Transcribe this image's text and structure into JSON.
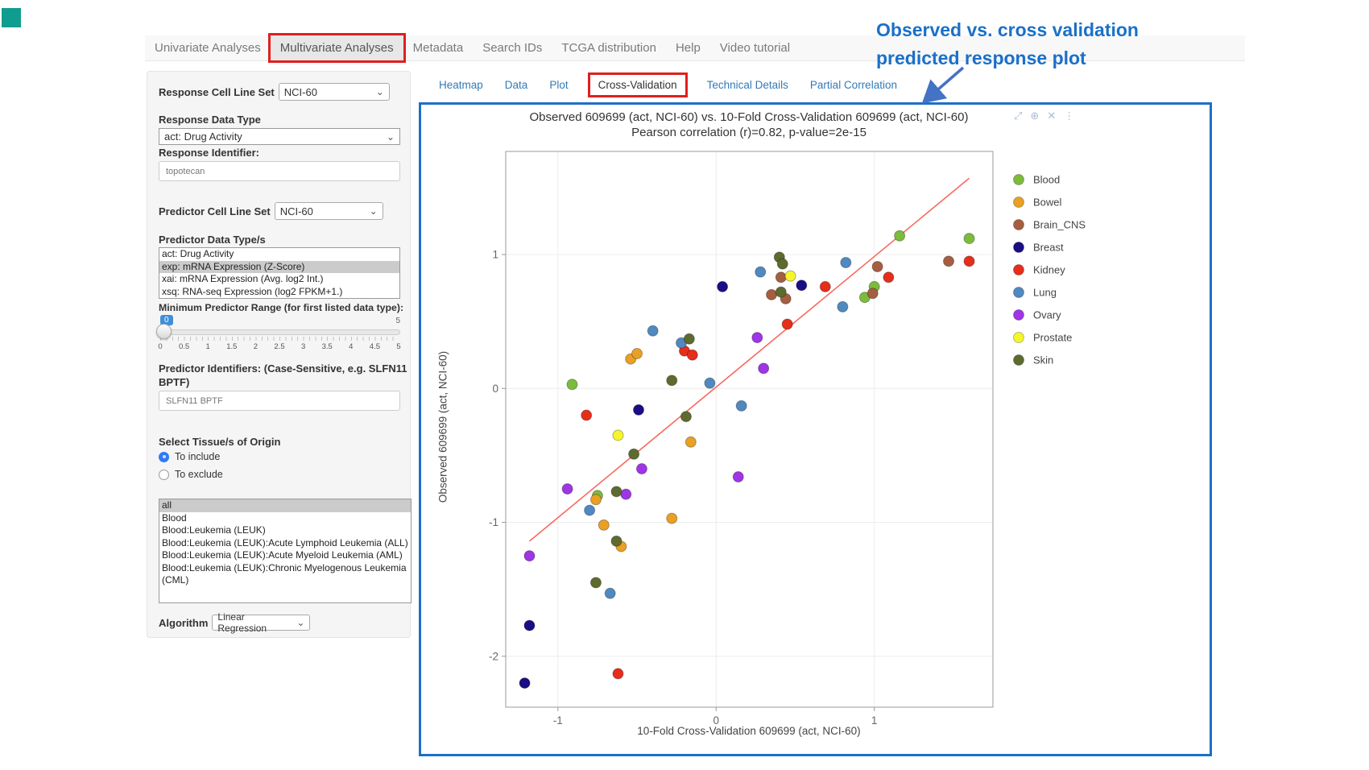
{
  "icons": {
    "chevron": "⌄"
  },
  "navbar": {
    "tabs": [
      {
        "label": "Univariate Analyses",
        "active": false
      },
      {
        "label": "Multivariate Analyses",
        "active": true
      },
      {
        "label": "Metadata",
        "active": false
      },
      {
        "label": "Search IDs",
        "active": false
      },
      {
        "label": "TCGA distribution",
        "active": false
      },
      {
        "label": "Help",
        "active": false
      },
      {
        "label": "Video tutorial",
        "active": false
      }
    ]
  },
  "subtabs": [
    {
      "label": "Heatmap",
      "active": false
    },
    {
      "label": "Data",
      "active": false
    },
    {
      "label": "Plot",
      "active": false
    },
    {
      "label": "Cross-Validation",
      "active": true
    },
    {
      "label": "Technical Details",
      "active": false
    },
    {
      "label": "Partial Correlation",
      "active": false
    }
  ],
  "sidebar": {
    "response_cell_line_set": {
      "label": "Response Cell Line Set",
      "value": "NCI-60"
    },
    "response_data_type": {
      "label": "Response Data Type",
      "value": "act: Drug Activity"
    },
    "response_identifier": {
      "label": "Response Identifier:",
      "value": "topotecan"
    },
    "predictor_cell_line_set": {
      "label": "Predictor Cell Line Set",
      "value": "NCI-60"
    },
    "predictor_data_types": {
      "label": "Predictor Data Type/s",
      "options": [
        "act: Drug Activity",
        "exp: mRNA Expression (Z-Score)",
        "xai: mRNA Expression (Avg. log2 Int.)",
        "xsq: RNA-seq Expression (log2 FPKM+1.)"
      ],
      "selected_index": 1
    },
    "min_predictor_range": {
      "label": "Minimum Predictor Range (for first listed data type):",
      "value": "0",
      "max_label": "5",
      "tick_labels": [
        "0",
        "0.5",
        "1",
        "1.5",
        "2",
        "2.5",
        "3",
        "3.5",
        "4",
        "4.5",
        "5"
      ]
    },
    "predictor_identifiers": {
      "label": "Predictor Identifiers: (Case-Sensitive, e.g. SLFN11 BPTF)",
      "value": "SLFN11 BPTF"
    },
    "tissue_origin": {
      "label": "Select Tissue/s of Origin",
      "radios": [
        {
          "label": "To include",
          "selected": true
        },
        {
          "label": "To exclude",
          "selected": false
        }
      ],
      "options": [
        "all",
        "Blood",
        "Blood:Leukemia (LEUK)",
        "Blood:Leukemia (LEUK):Acute Lymphoid Leukemia (ALL)",
        "Blood:Leukemia (LEUK):Acute Myeloid Leukemia (AML)",
        "Blood:Leukemia (LEUK):Chronic Myelogenous Leukemia (CML)"
      ],
      "selected_index": 0
    },
    "algorithm": {
      "label": "Algorithm",
      "value": "Linear Regression"
    }
  },
  "annotation": {
    "line1": "Observed vs. cross validation",
    "line2": "predicted response plot",
    "color": "#1a70c9"
  },
  "modebar": {
    "icons": [
      {
        "name": "expand-icon",
        "glyph": "⤢"
      },
      {
        "name": "zoom-icon",
        "glyph": "⊕"
      },
      {
        "name": "close-icon",
        "glyph": "✕"
      },
      {
        "name": "more-icon",
        "glyph": "⋮"
      }
    ]
  },
  "chart_data": {
    "type": "scatter",
    "title": "Observed 609699 (act, NCI-60) vs. 10-Fold Cross-Validation 609699 (act, NCI-60)",
    "subtitle": "Pearson correlation (r)=0.82, p-value=2e-15",
    "xlabel": "10-Fold Cross-Validation 609699 (act, NCI-60)",
    "ylabel": "Observed 609699 (act, NCI-60)",
    "xlim": [
      -1.33,
      1.75
    ],
    "ylim": [
      -2.38,
      1.77
    ],
    "xticks": [
      -1,
      0,
      1
    ],
    "yticks": [
      1,
      0,
      -1,
      -2
    ],
    "grid": true,
    "legend_position": "right",
    "regression_line": {
      "x1": -1.18,
      "y1": -1.14,
      "x2": 1.6,
      "y2": 1.57,
      "color": "#f8695f"
    },
    "series": [
      {
        "name": "Blood",
        "color": "#7cbb3c",
        "points": [
          [
            -0.91,
            0.03
          ],
          [
            1.16,
            1.14
          ],
          [
            1.0,
            0.76
          ],
          [
            0.94,
            0.68
          ],
          [
            -0.75,
            -0.8
          ],
          [
            1.6,
            1.12
          ]
        ]
      },
      {
        "name": "Bowel",
        "color": "#e9a024",
        "points": [
          [
            -0.54,
            0.22
          ],
          [
            -0.5,
            0.26
          ],
          [
            -0.16,
            -0.4
          ],
          [
            -0.76,
            -0.83
          ],
          [
            -0.71,
            -1.02
          ],
          [
            -0.28,
            -0.97
          ],
          [
            -0.6,
            -1.18
          ]
        ]
      },
      {
        "name": "Brain_CNS",
        "color": "#a65e41",
        "points": [
          [
            0.41,
            0.83
          ],
          [
            0.35,
            0.7
          ],
          [
            0.44,
            0.67
          ],
          [
            1.02,
            0.91
          ],
          [
            0.99,
            0.71
          ],
          [
            1.47,
            0.95
          ]
        ]
      },
      {
        "name": "Breast",
        "color": "#1a0d85",
        "points": [
          [
            0.04,
            0.76
          ],
          [
            0.54,
            0.77
          ],
          [
            -0.49,
            -0.16
          ],
          [
            -1.18,
            -1.77
          ],
          [
            -1.21,
            -2.2
          ]
        ]
      },
      {
        "name": "Kidney",
        "color": "#e62e1b",
        "points": [
          [
            -0.2,
            0.28
          ],
          [
            -0.15,
            0.25
          ],
          [
            0.69,
            0.76
          ],
          [
            1.09,
            0.83
          ],
          [
            0.45,
            0.48
          ],
          [
            -0.82,
            -0.2
          ],
          [
            -0.62,
            -2.13
          ],
          [
            1.6,
            0.95
          ]
        ]
      },
      {
        "name": "Lung",
        "color": "#5089c0",
        "points": [
          [
            -0.4,
            0.43
          ],
          [
            -0.22,
            0.34
          ],
          [
            0.28,
            0.87
          ],
          [
            0.82,
            0.94
          ],
          [
            0.8,
            0.61
          ],
          [
            -0.04,
            0.04
          ],
          [
            0.16,
            -0.13
          ],
          [
            -0.8,
            -0.91
          ],
          [
            -0.67,
            -1.53
          ]
        ]
      },
      {
        "name": "Ovary",
        "color": "#9f35e5",
        "points": [
          [
            0.26,
            0.38
          ],
          [
            0.3,
            0.15
          ],
          [
            0.14,
            -0.66
          ],
          [
            -0.47,
            -0.6
          ],
          [
            -0.94,
            -0.75
          ],
          [
            -0.57,
            -0.79
          ],
          [
            -1.18,
            -1.25
          ]
        ]
      },
      {
        "name": "Prostate",
        "color": "#f5f52b",
        "points": [
          [
            0.47,
            0.84
          ],
          [
            -0.62,
            -0.35
          ]
        ]
      },
      {
        "name": "Skin",
        "color": "#5e6b2f",
        "points": [
          [
            -0.17,
            0.37
          ],
          [
            -0.28,
            0.06
          ],
          [
            0.4,
            0.98
          ],
          [
            0.42,
            0.93
          ],
          [
            0.41,
            0.72
          ],
          [
            -0.19,
            -0.21
          ],
          [
            -0.52,
            -0.49
          ],
          [
            -0.63,
            -0.77
          ],
          [
            -0.63,
            -1.14
          ],
          [
            -0.76,
            -1.45
          ]
        ]
      }
    ]
  }
}
